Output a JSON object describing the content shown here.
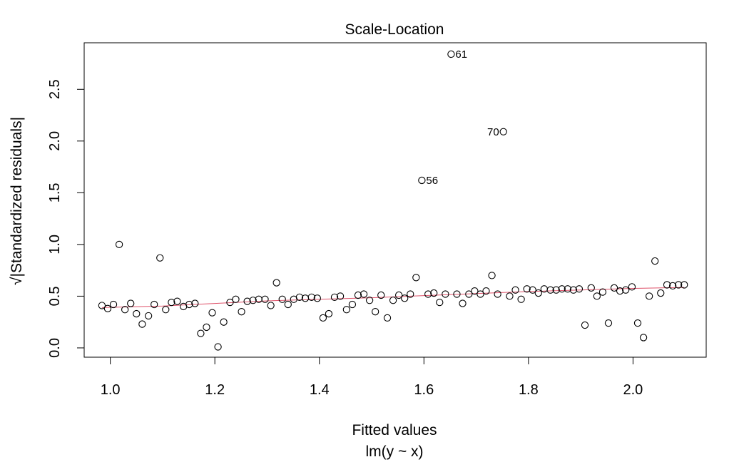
{
  "chart_data": {
    "type": "scatter",
    "title": "Scale-Location",
    "xlabel": "Fitted values",
    "subtitle": "lm(y ~ x)",
    "ylabel": "√|Standardized residuals|",
    "xlim": [
      0.95,
      2.14
    ],
    "ylim": [
      -0.09,
      2.95
    ],
    "x_ticks": [
      "1.0",
      "1.2",
      "1.4",
      "1.6",
      "1.8",
      "2.0"
    ],
    "y_ticks": [
      "0.0",
      "0.5",
      "1.0",
      "1.5",
      "2.0",
      "2.5"
    ],
    "grid": false,
    "series": [
      {
        "x": [
          0.984,
          0.995,
          1.006,
          1.017,
          1.028,
          1.039,
          1.05,
          1.061,
          1.073,
          1.084,
          1.095,
          1.106,
          1.117,
          1.128,
          1.14,
          1.151,
          1.162,
          1.173,
          1.184,
          1.195,
          1.206,
          1.217,
          1.229,
          1.24,
          1.251,
          1.262,
          1.273,
          1.284,
          1.296,
          1.307,
          1.318,
          1.329,
          1.34,
          1.351,
          1.362,
          1.373,
          1.385,
          1.396,
          1.407,
          1.418,
          1.429,
          1.44,
          1.452,
          1.463,
          1.474,
          1.485,
          1.496,
          1.507,
          1.518,
          1.53,
          1.541,
          1.552,
          1.563,
          1.574,
          1.585,
          1.596,
          1.608,
          1.619,
          1.63,
          1.641,
          1.652,
          1.663,
          1.674,
          1.686,
          1.697,
          1.708,
          1.719,
          1.73,
          1.741,
          1.752,
          1.764,
          1.775,
          1.786,
          1.797,
          1.808,
          1.819,
          1.83,
          1.842,
          1.853,
          1.864,
          1.875,
          1.886,
          1.897,
          1.908,
          1.92,
          1.931,
          1.942,
          1.953,
          1.964,
          1.975,
          1.986,
          1.998,
          2.009,
          2.02,
          2.031,
          2.042,
          2.053,
          2.065,
          2.076,
          2.087,
          2.098
        ],
        "y": [
          0.41,
          0.38,
          0.42,
          1.0,
          0.37,
          0.43,
          0.33,
          0.23,
          0.31,
          0.42,
          0.87,
          0.37,
          0.44,
          0.45,
          0.4,
          0.42,
          0.43,
          0.14,
          0.2,
          0.34,
          0.01,
          0.25,
          0.44,
          0.47,
          0.35,
          0.45,
          0.46,
          0.47,
          0.47,
          0.41,
          0.63,
          0.47,
          0.42,
          0.47,
          0.49,
          0.48,
          0.49,
          0.48,
          0.29,
          0.33,
          0.49,
          0.5,
          0.37,
          0.42,
          0.51,
          0.52,
          0.46,
          0.35,
          0.51,
          0.29,
          0.46,
          0.51,
          0.48,
          0.52,
          0.68,
          1.62,
          0.52,
          0.53,
          0.44,
          0.52,
          2.84,
          0.52,
          0.43,
          0.52,
          0.55,
          0.52,
          0.55,
          0.7,
          0.52,
          2.09,
          0.5,
          0.56,
          0.47,
          0.57,
          0.56,
          0.53,
          0.57,
          0.56,
          0.56,
          0.57,
          0.57,
          0.56,
          0.57,
          0.22,
          0.58,
          0.5,
          0.54,
          0.24,
          0.58,
          0.55,
          0.56,
          0.59,
          0.24,
          0.1,
          0.5,
          0.84,
          0.53,
          0.61,
          0.6,
          0.61,
          0.61
        ]
      }
    ],
    "smooth": {
      "x": [
        0.984,
        1.1,
        1.2,
        1.3,
        1.4,
        1.5,
        1.6,
        1.7,
        1.8,
        1.9,
        2.0,
        2.098
      ],
      "y": [
        0.39,
        0.405,
        0.43,
        0.455,
        0.47,
        0.485,
        0.505,
        0.525,
        0.545,
        0.56,
        0.575,
        0.585
      ],
      "color": "#df536b"
    },
    "annotations": [
      {
        "label": "61",
        "x": 1.652,
        "y": 2.84,
        "side": "right"
      },
      {
        "label": "70",
        "x": 1.752,
        "y": 2.09,
        "side": "left"
      },
      {
        "label": "56",
        "x": 1.596,
        "y": 1.62,
        "side": "right"
      }
    ]
  }
}
